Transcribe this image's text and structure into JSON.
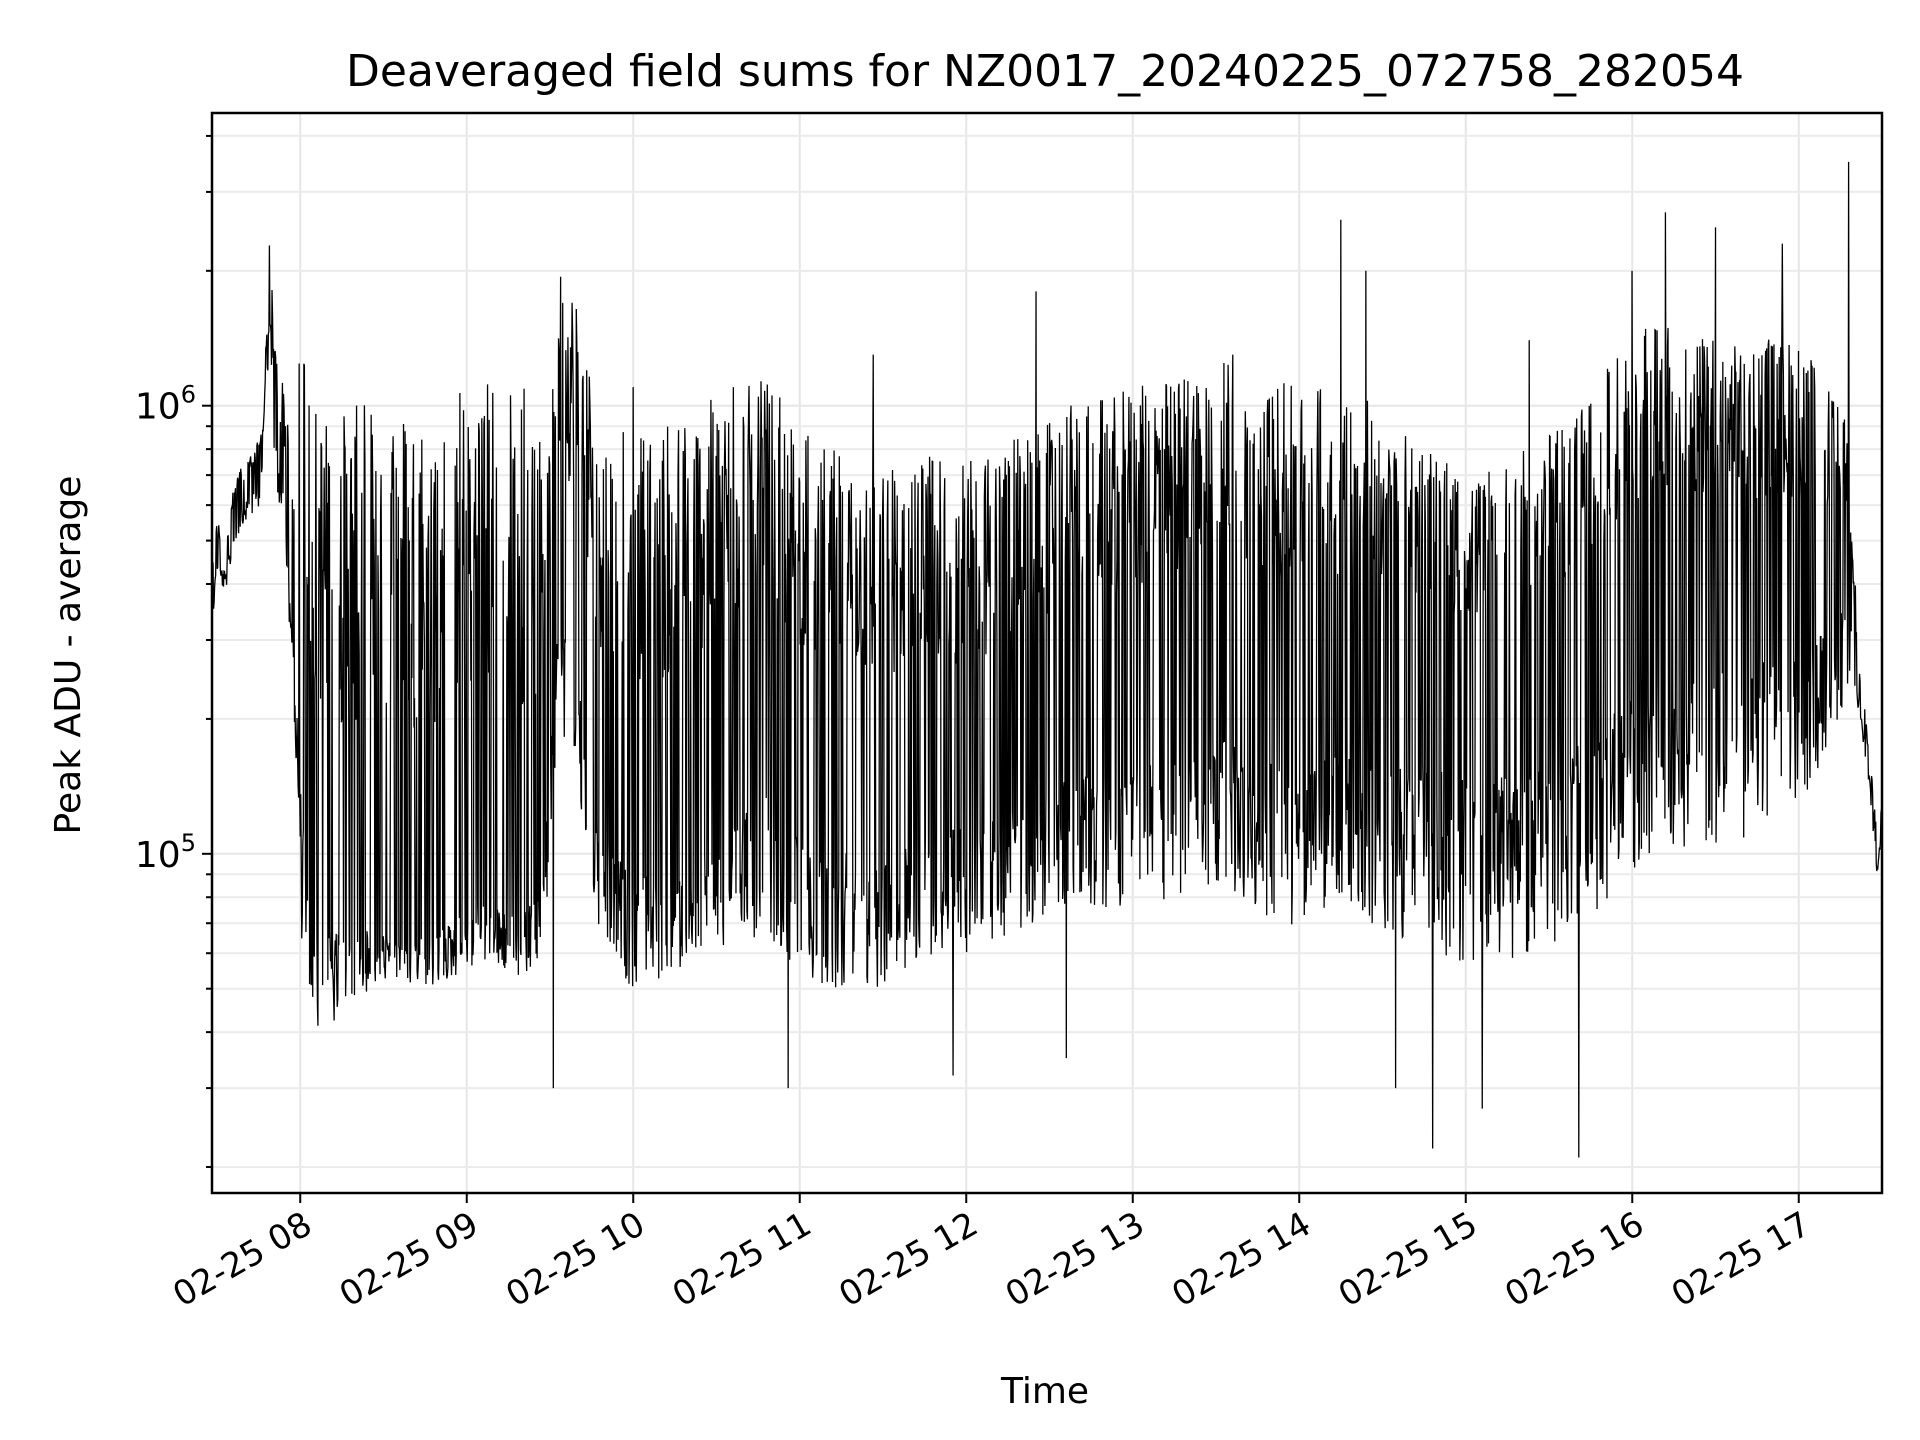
{
  "chart_data": {
    "type": "line",
    "title": "Deaveraged field sums for NZ0017_20240225_072758_282054",
    "xlabel": "Time",
    "ylabel": "Peak ADU - average",
    "yscale": "log",
    "grid": true,
    "x_tick_labels": [
      "02-25 08",
      "02-25 09",
      "02-25 10",
      "02-25 11",
      "02-25 12",
      "02-25 13",
      "02-25 14",
      "02-25 15",
      "02-25 16",
      "02-25 17"
    ],
    "x_tick_hours": [
      8,
      9,
      10,
      11,
      12,
      13,
      14,
      15,
      16,
      17
    ],
    "xlim_hours": [
      7.47,
      17.5
    ],
    "y_major_ticks": [
      {
        "value": 100000,
        "base": "10",
        "exp": "5"
      },
      {
        "value": 1000000,
        "base": "10",
        "exp": "6"
      }
    ],
    "ylim": [
      17500,
      4500000
    ],
    "series": [
      {
        "anchors": [
          [
            7.47,
            380000
          ],
          [
            7.5,
            480000
          ],
          [
            7.55,
            450000
          ],
          [
            7.6,
            560000
          ],
          [
            7.65,
            640000
          ],
          [
            7.7,
            660000
          ],
          [
            7.75,
            700000
          ],
          [
            7.78,
            800000
          ],
          [
            7.8,
            1300000
          ],
          [
            7.82,
            1950000
          ],
          [
            7.84,
            1000000
          ],
          [
            7.86,
            850000
          ],
          [
            7.9,
            700000
          ],
          [
            7.93,
            500000
          ],
          [
            7.96,
            380000
          ],
          [
            8.0,
            200000
          ],
          [
            8.05,
            110000
          ],
          [
            8.15,
            85000
          ],
          [
            8.3,
            80000
          ],
          [
            8.5,
            75000
          ],
          [
            8.7,
            72000
          ],
          [
            8.9,
            80000
          ],
          [
            9.1,
            90000
          ],
          [
            9.3,
            85000
          ],
          [
            9.45,
            95000
          ],
          [
            9.5,
            200000
          ],
          [
            9.55,
            450000
          ],
          [
            9.65,
            350000
          ],
          [
            9.8,
            150000
          ],
          [
            10.0,
            110000
          ],
          [
            10.2,
            120000
          ],
          [
            10.4,
            140000
          ],
          [
            10.6,
            160000
          ],
          [
            10.8,
            180000
          ],
          [
            11.0,
            150000
          ],
          [
            11.2,
            140000
          ],
          [
            11.4,
            130000
          ],
          [
            11.6,
            140000
          ],
          [
            11.8,
            150000
          ],
          [
            12.0,
            150000
          ],
          [
            12.2,
            160000
          ],
          [
            12.4,
            180000
          ],
          [
            12.6,
            200000
          ],
          [
            12.8,
            210000
          ],
          [
            13.0,
            220000
          ],
          [
            13.2,
            230000
          ],
          [
            13.4,
            250000
          ],
          [
            13.6,
            250000
          ],
          [
            13.8,
            230000
          ],
          [
            14.0,
            220000
          ],
          [
            14.2,
            240000
          ],
          [
            14.4,
            250000
          ],
          [
            14.6,
            230000
          ],
          [
            14.8,
            240000
          ],
          [
            15.0,
            220000
          ],
          [
            15.2,
            230000
          ],
          [
            15.4,
            240000
          ],
          [
            15.6,
            260000
          ],
          [
            15.8,
            300000
          ],
          [
            16.0,
            360000
          ],
          [
            16.2,
            400000
          ],
          [
            16.4,
            380000
          ],
          [
            16.6,
            370000
          ],
          [
            16.8,
            400000
          ],
          [
            17.0,
            400000
          ],
          [
            17.2,
            420000
          ],
          [
            17.3,
            450000
          ],
          [
            17.35,
            250000
          ],
          [
            17.42,
            160000
          ],
          [
            17.47,
            100000
          ],
          [
            17.5,
            120000
          ]
        ],
        "envelope": [
          [
            7.47,
            1.15,
            0.85
          ],
          [
            7.78,
            1.2,
            0.85
          ],
          [
            7.95,
            1.8,
            0.65
          ],
          [
            8.0,
            10.0,
            0.35
          ],
          [
            8.5,
            14.0,
            0.7
          ],
          [
            9.4,
            13.0,
            0.6
          ],
          [
            9.5,
            4.0,
            0.5
          ],
          [
            9.6,
            5.0,
            0.4
          ],
          [
            10.0,
            8.0,
            0.45
          ],
          [
            11.0,
            6.0,
            0.35
          ],
          [
            12.0,
            5.0,
            0.4
          ],
          [
            13.0,
            5.0,
            0.35
          ],
          [
            14.0,
            5.0,
            0.3
          ],
          [
            15.0,
            3.0,
            0.25
          ],
          [
            15.5,
            3.5,
            0.25
          ],
          [
            16.0,
            4.0,
            0.25
          ],
          [
            17.0,
            3.5,
            0.3
          ],
          [
            17.3,
            2.0,
            0.5
          ],
          [
            17.36,
            1.15,
            0.9
          ],
          [
            17.5,
            1.1,
            0.9
          ]
        ],
        "spikes": [
          [
            9.72,
            1200000
          ],
          [
            10.0,
            1100000
          ],
          [
            10.6,
            1100000
          ],
          [
            11.44,
            1300000
          ],
          [
            12.42,
            1800000
          ],
          [
            12.6,
            1300000
          ],
          [
            13.6,
            1300000
          ],
          [
            14.25,
            2600000
          ],
          [
            14.4,
            2000000
          ],
          [
            15.38,
            1400000
          ],
          [
            16.0,
            2000000
          ],
          [
            16.2,
            2700000
          ],
          [
            16.5,
            2500000
          ],
          [
            16.9,
            2300000
          ],
          [
            17.3,
            3500000
          ],
          [
            14.8,
            22000
          ],
          [
            15.1,
            27000
          ],
          [
            15.68,
            21000
          ],
          [
            10.93,
            30000
          ],
          [
            9.52,
            30000
          ],
          [
            11.92,
            32000
          ],
          [
            12.6,
            35000
          ],
          [
            14.58,
            30000
          ]
        ]
      }
    ]
  }
}
